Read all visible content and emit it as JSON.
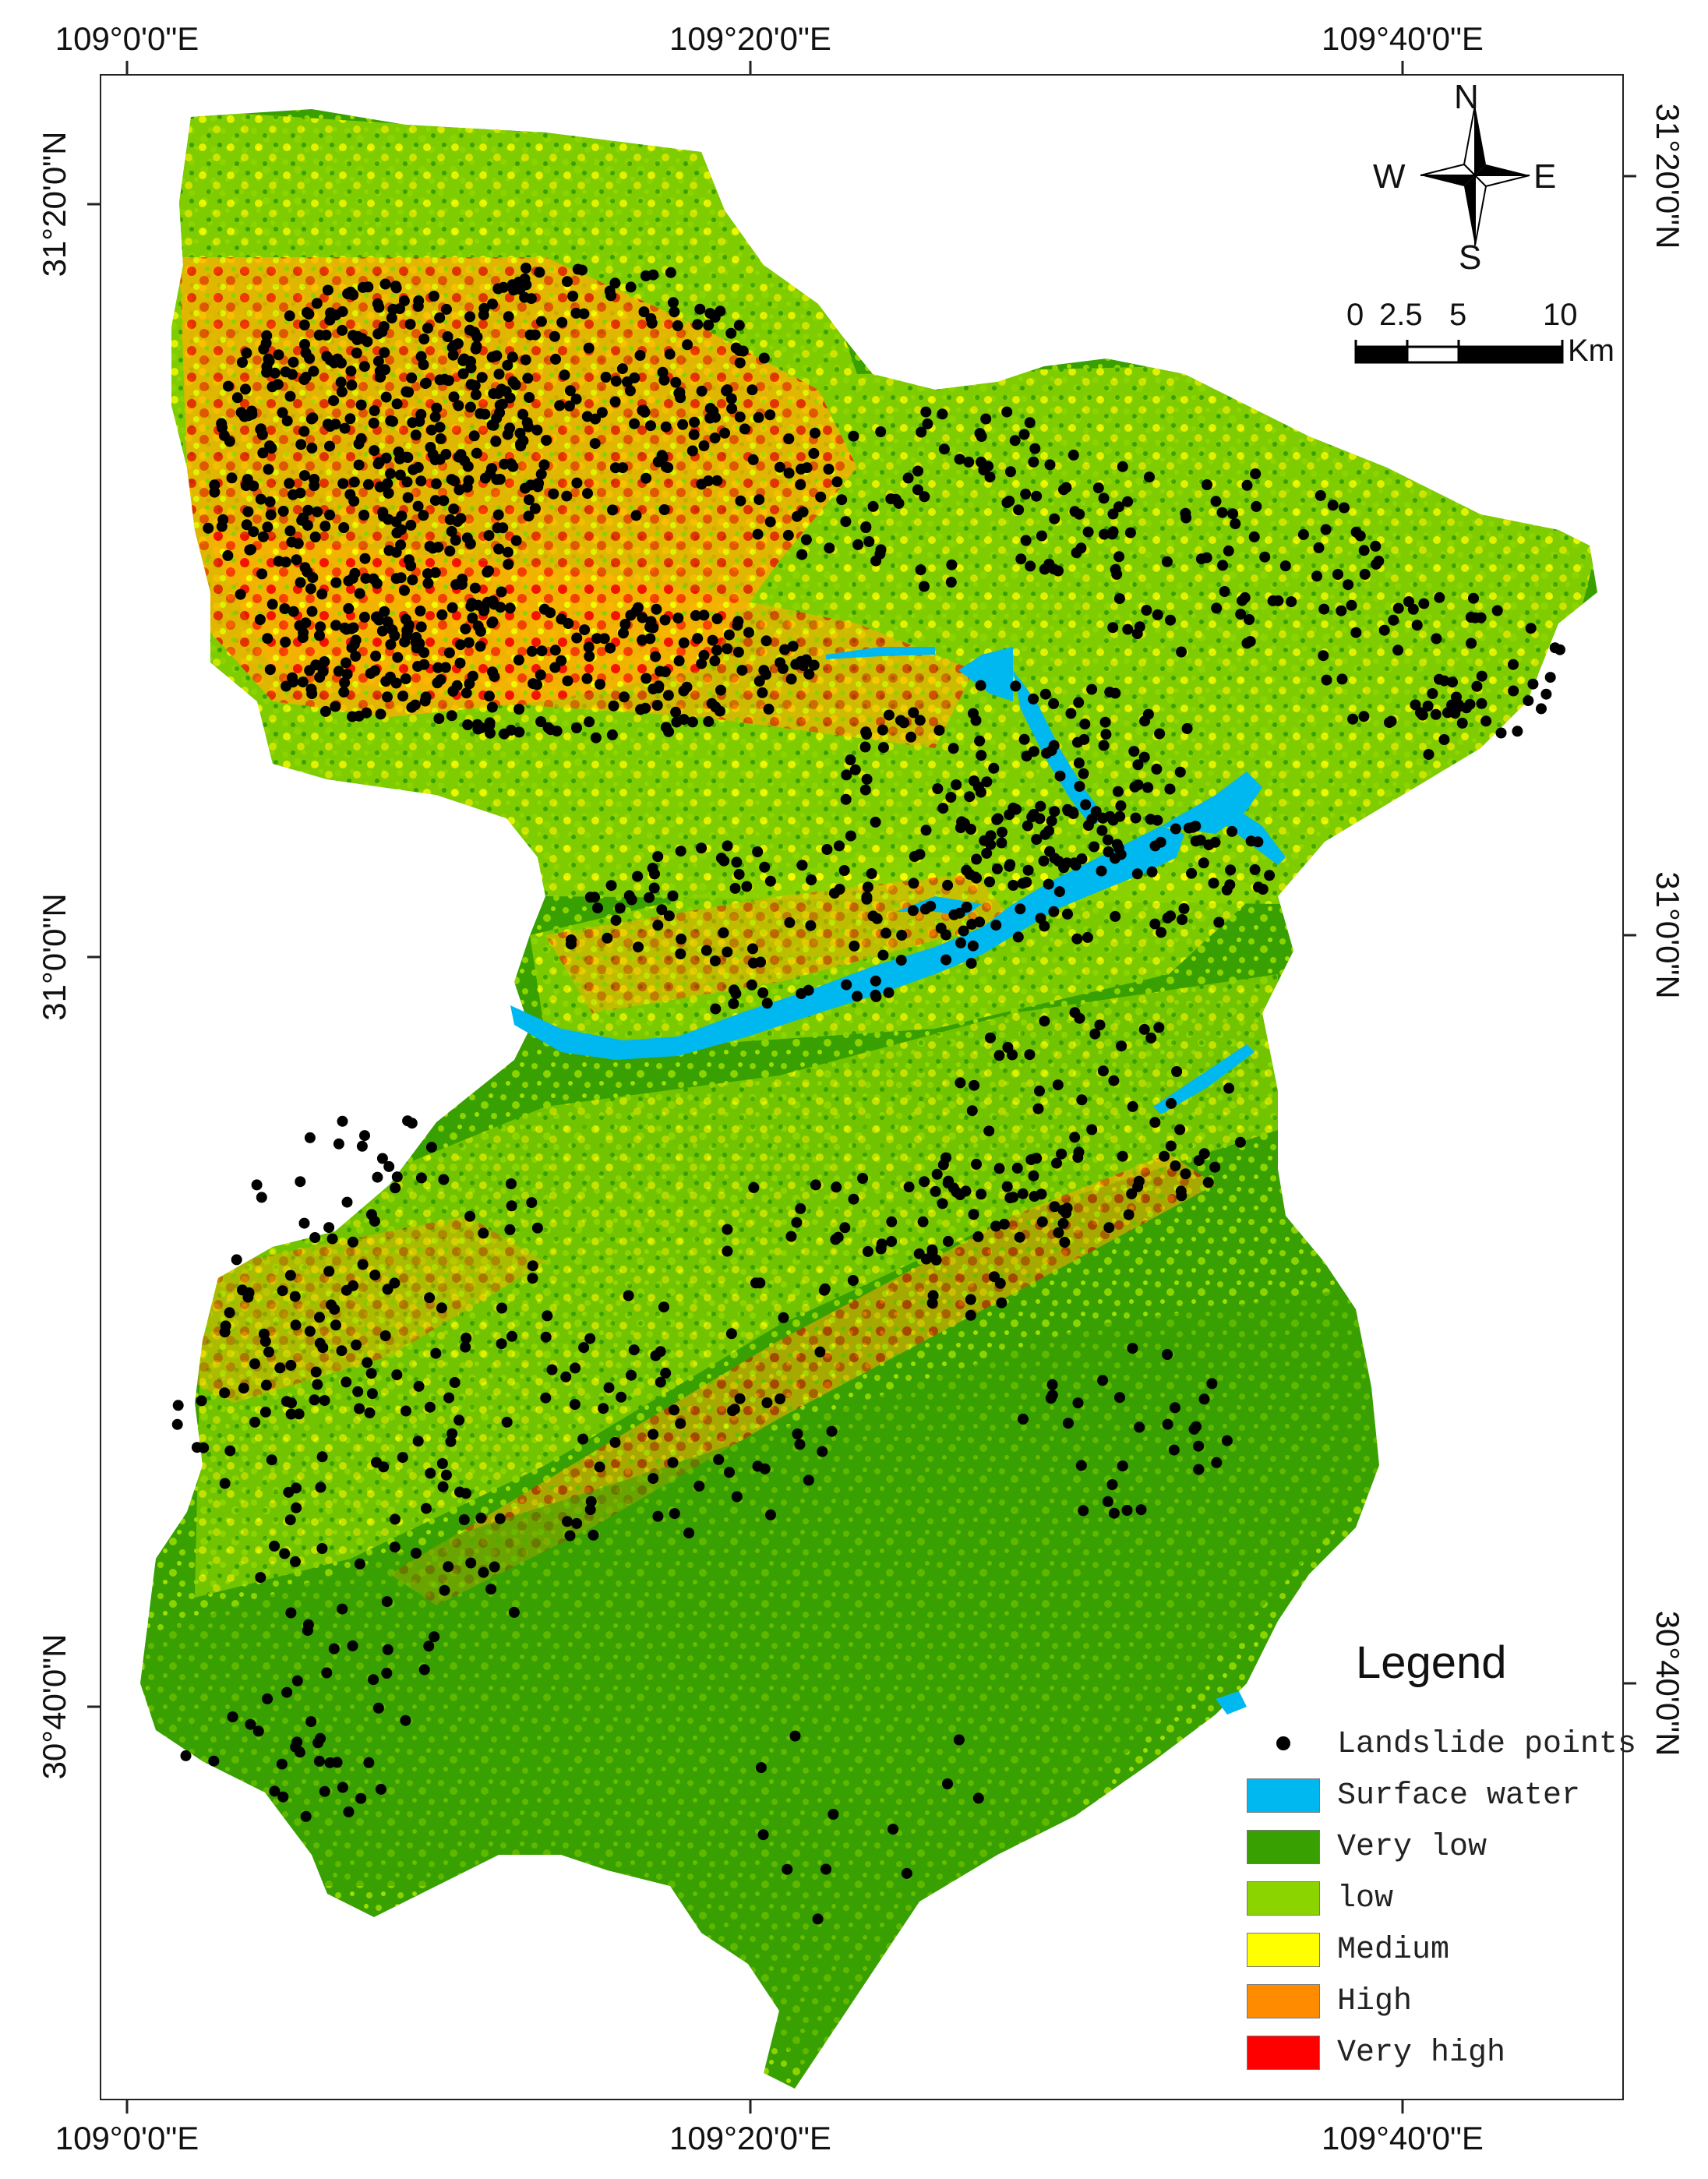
{
  "map": {
    "lon_labels": [
      "109°0'0\"E",
      "109°20'0\"E",
      "109°40'0\"E"
    ],
    "lat_labels": [
      "31°20'0\"N",
      "31°0'0\"N",
      "30°40'0\"N"
    ]
  },
  "compass": {
    "n": "N",
    "s": "S",
    "e": "E",
    "w": "W"
  },
  "scale_bar": {
    "labels": [
      "0",
      "2.5",
      "5",
      "10"
    ],
    "unit": "Km"
  },
  "legend": {
    "title": "Legend",
    "items": [
      {
        "label": "Landslide points",
        "color": "#000000",
        "kind": "point"
      },
      {
        "label": "Surface water",
        "color": "#00b8f0",
        "kind": "area"
      },
      {
        "label": "Very low",
        "color": "#38a000",
        "kind": "area"
      },
      {
        "label": "low",
        "color": "#8cd400",
        "kind": "area"
      },
      {
        "label": "Medium",
        "color": "#ffff00",
        "kind": "area"
      },
      {
        "label": "High",
        "color": "#ff8c00",
        "kind": "area"
      },
      {
        "label": "Very high",
        "color": "#ff0000",
        "kind": "area"
      }
    ]
  }
}
